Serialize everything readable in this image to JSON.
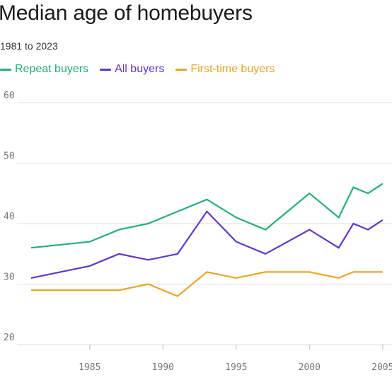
{
  "chart_data": {
    "type": "line",
    "title": "Median age of homebuyers",
    "subtitle": "1981 to 2023",
    "xlabel": "",
    "ylabel": "",
    "ylim": [
      20,
      60
    ],
    "yticks": [
      20,
      30,
      40,
      50,
      60
    ],
    "xticks": [
      1985,
      1990,
      1995,
      2000,
      2005
    ],
    "xtick_labels": [
      "1985",
      "1990",
      "1995",
      "2000",
      "2005"
    ],
    "grid": true,
    "legend_position": "top-left",
    "series": [
      {
        "name": "Repeat buyers",
        "color": "#1db374",
        "x": [
          1981,
          1985,
          1987,
          1989,
          1991,
          1993,
          1995,
          1997,
          2000,
          2002,
          2003,
          2004,
          2005
        ],
        "values": [
          36,
          37,
          39,
          40,
          42,
          44,
          41,
          39,
          45,
          41,
          46,
          45,
          46.6
        ]
      },
      {
        "name": "All buyers",
        "color": "#6433d6",
        "x": [
          1981,
          1985,
          1987,
          1989,
          1991,
          1993,
          1995,
          1997,
          2000,
          2002,
          2003,
          2004,
          2005
        ],
        "values": [
          31,
          33,
          35,
          34,
          35,
          42,
          37,
          35,
          39,
          36,
          40,
          39,
          40.6
        ]
      },
      {
        "name": "First-time buyers",
        "color": "#f0a322",
        "x": [
          1981,
          1985,
          1987,
          1989,
          1991,
          1993,
          1995,
          1997,
          2000,
          2002,
          2003,
          2004,
          2005
        ],
        "values": [
          29,
          29,
          29,
          30,
          28,
          32,
          31,
          32,
          32,
          31,
          32,
          32,
          32
        ]
      }
    ]
  }
}
